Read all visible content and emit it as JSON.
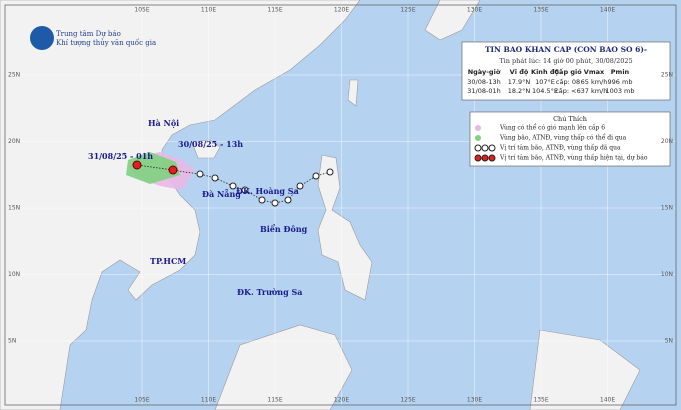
{
  "header": {
    "org_line1": "Trung tâm Dự báo",
    "org_line2": "Khí tượng thủy văn quốc gia"
  },
  "bulletin": {
    "title": "TIN BAO KHAN CAP (CON BAO SO 6)-",
    "issued": "Tin phát lúc: 14 giờ 00 phút, 30/08/2025",
    "columns": [
      "Ngày-giờ",
      "Vĩ độ",
      "Kinh độ",
      "Cấp gió",
      "Vmax",
      "Pmin"
    ],
    "rows": [
      [
        "30/08-13h",
        "17.9°N",
        "107°E",
        "cấp: 08",
        "65 km/h",
        "996 mb"
      ],
      [
        "31/08-01h",
        "18.2°N",
        "104.5°E",
        "cấp: <6",
        "37 km/h",
        "1003 mb"
      ]
    ]
  },
  "legend": {
    "title": "Chú Thích",
    "items": [
      "Vùng có thể có gió mạnh lên cấp 6",
      "Vùng bão, ATNĐ, vùng thấp có thể đi qua",
      "Vị trí tâm bão, ATNĐ, vùng thấp đã qua",
      "Vị trí tâm bão, ATNĐ, vùng thấp hiện tại, dự báo"
    ]
  },
  "places": [
    "Hà Nội",
    "30/08/25 - 13h",
    "31/08/25 - 01h",
    "Đà Nẵng",
    "ĐK. Hoàng Sa",
    "Biển Đông",
    "TP.HCM",
    "ĐK. Trường Sa"
  ],
  "lon_labels": [
    "105E",
    "110E",
    "115E",
    "120E",
    "125E",
    "130E",
    "135E",
    "140E"
  ],
  "lat_labels": [
    "25N",
    "20N",
    "15N",
    "10N",
    "5N"
  ]
}
